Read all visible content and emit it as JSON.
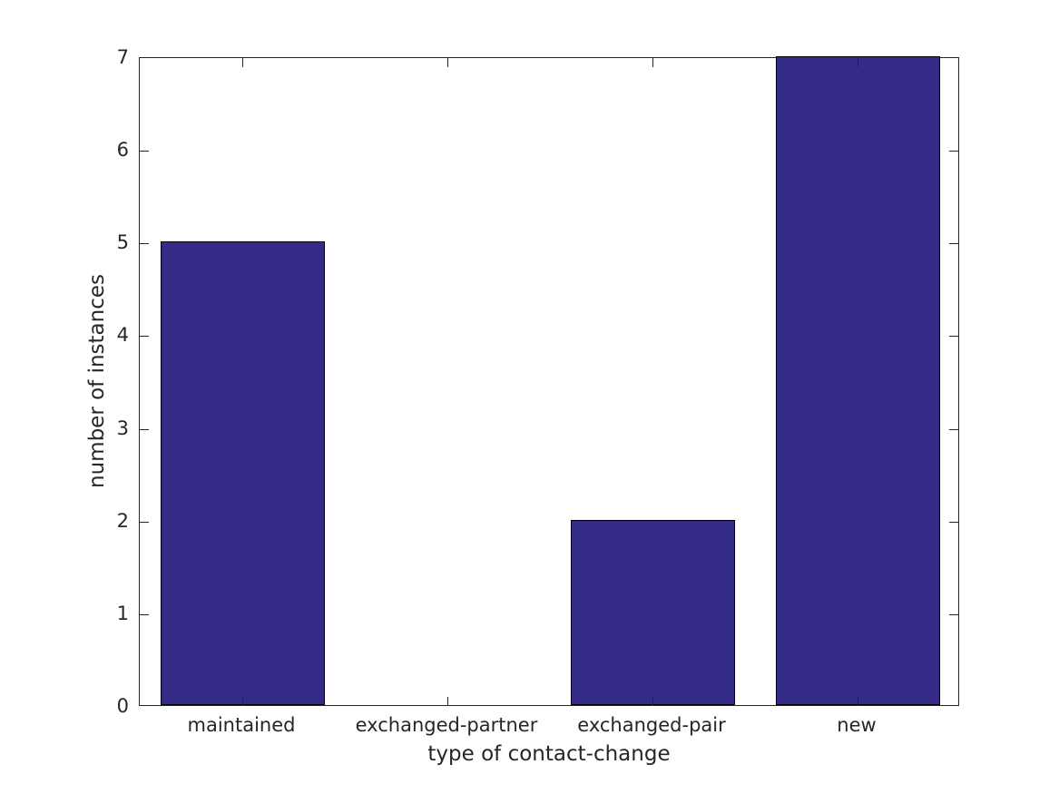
{
  "figure": {
    "background": "#ffffff"
  },
  "chart_data": {
    "type": "bar",
    "categories": [
      "maintained",
      "exchanged-partner",
      "exchanged-pair",
      "new"
    ],
    "values": [
      5,
      0,
      2,
      7
    ],
    "title": "",
    "xlabel": "type of contact-change",
    "ylabel": "number of instances",
    "ylim": [
      0,
      7
    ],
    "yticks": [
      0,
      1,
      2,
      3,
      4,
      5,
      6,
      7
    ],
    "bar_width_fraction": 0.8,
    "grid": false,
    "legend": false,
    "bar_color": "#352c87",
    "bar_edge_color": "#000000",
    "axis_color": "#262626",
    "text_color": "#262626",
    "tick_direction": "in"
  }
}
